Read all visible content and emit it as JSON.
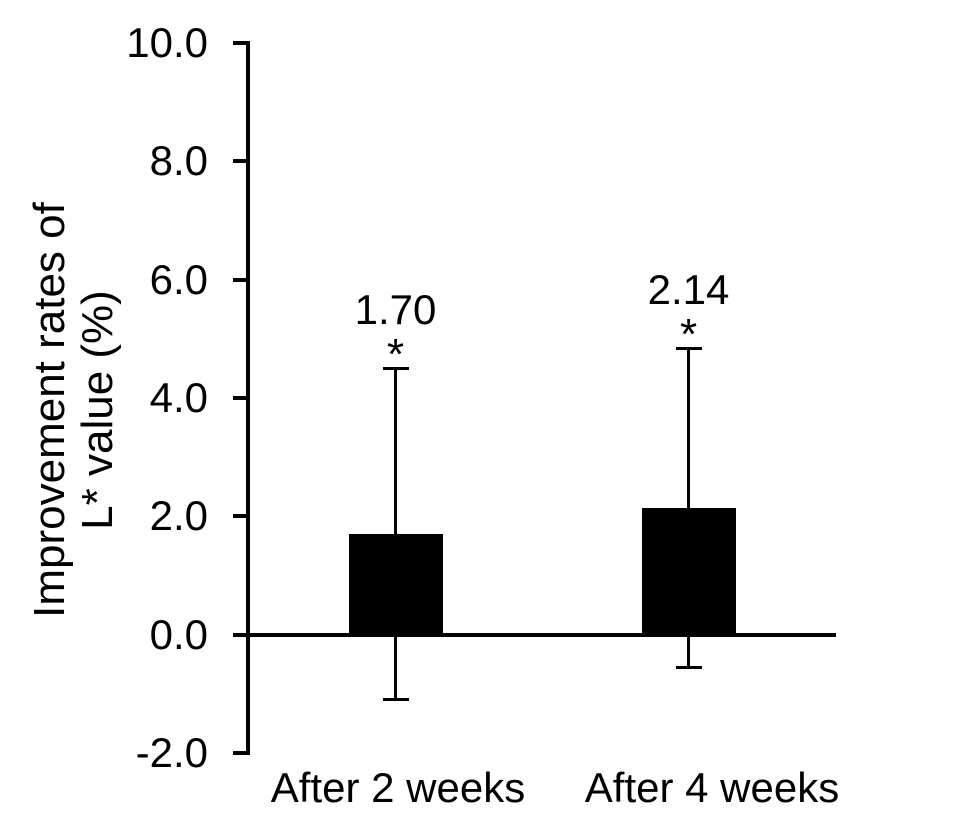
{
  "chart_data": {
    "type": "bar",
    "title": "",
    "categories": [
      "After 2 weeks",
      "After 4 weeks"
    ],
    "values": [
      1.7,
      2.14
    ],
    "value_labels": [
      "1.70",
      "2.14"
    ],
    "errors_plus_minus": [
      2.8,
      2.7
    ],
    "significance_markers": [
      "*",
      "*"
    ],
    "ylabel_lines": [
      "Improvement rates of",
      "L* value (%)"
    ],
    "yticks": [
      10.0,
      8.0,
      6.0,
      4.0,
      2.0,
      0.0,
      -2.0
    ],
    "ytick_labels": [
      "10.0",
      "8.0",
      "6.0",
      "4.0",
      "2.0",
      "0.0",
      "-2.0"
    ],
    "ylim": [
      -2.0,
      10.0
    ],
    "bar_color": "#000000",
    "axis_color": "#000000",
    "background_color": "#ffffff",
    "grid": false,
    "legend": false
  }
}
